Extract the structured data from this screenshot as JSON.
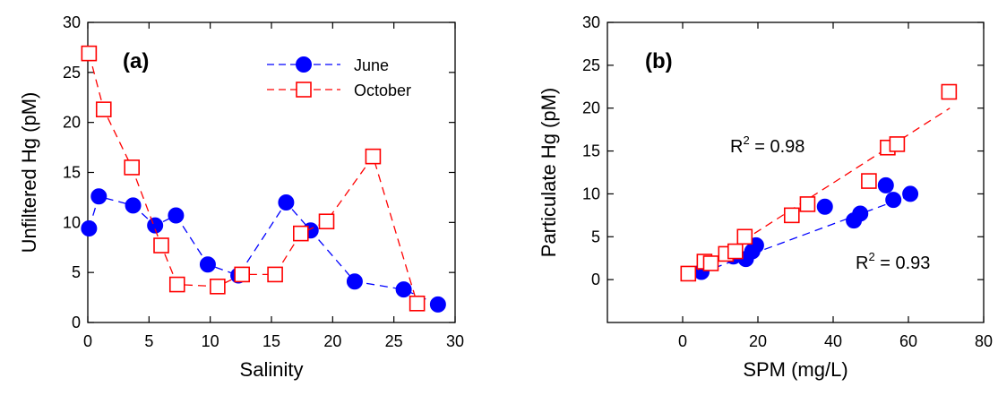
{
  "colors": {
    "june": "#0000ff",
    "october": "#ff0000",
    "axis": "#000000"
  },
  "chart_data": [
    {
      "type": "line",
      "panel_label": "(a)",
      "xlabel": "Salinity",
      "ylabel": "Unfiltered Hg (pM)",
      "xlim": [
        0,
        30
      ],
      "ylim": [
        0,
        30
      ],
      "xticks": [
        0,
        5,
        10,
        15,
        20,
        25,
        30
      ],
      "yticks": [
        0,
        5,
        10,
        15,
        20,
        25,
        30
      ],
      "grid": false,
      "legend": "top-right",
      "series": [
        {
          "name": "June",
          "marker": "filled-circle",
          "line": "dashed",
          "color": "#0000ff",
          "x": [
            0.1,
            0.9,
            3.7,
            5.5,
            7.2,
            9.8,
            12.3,
            16.2,
            18.2,
            21.8,
            25.8,
            28.6
          ],
          "y": [
            9.4,
            12.6,
            11.7,
            9.7,
            10.7,
            5.8,
            4.7,
            12.0,
            9.2,
            4.1,
            3.3,
            1.8
          ]
        },
        {
          "name": "October",
          "marker": "open-square",
          "line": "dashed",
          "color": "#ff0000",
          "x": [
            0.1,
            1.3,
            3.6,
            6.0,
            7.3,
            10.6,
            12.6,
            15.3,
            17.4,
            19.5,
            23.3,
            26.9
          ],
          "y": [
            26.9,
            21.3,
            15.5,
            7.7,
            3.8,
            3.6,
            4.8,
            4.8,
            8.9,
            10.1,
            16.6,
            1.9
          ]
        }
      ]
    },
    {
      "type": "scatter",
      "panel_label": "(b)",
      "xlabel": "SPM (mg/L)",
      "ylabel": "Particulate Hg (pM)",
      "xlim": [
        -20,
        80
      ],
      "ylim": [
        -5,
        30
      ],
      "xticks": [
        0,
        20,
        40,
        60,
        80
      ],
      "yticks": [
        0,
        5,
        10,
        15,
        20,
        25,
        30
      ],
      "grid": false,
      "series": [
        {
          "name": "June",
          "marker": "filled-circle",
          "color": "#0000ff",
          "x": [
            5,
            13.5,
            16.8,
            18.5,
            19.5,
            37.8,
            45.5,
            47.2,
            54,
            56,
            60.5
          ],
          "y": [
            0.9,
            2.7,
            2.4,
            3.3,
            4.0,
            8.5,
            6.9,
            7.7,
            11.0,
            9.3,
            10.0
          ],
          "fit": {
            "x": [
              5,
              61
            ],
            "y": [
              0.8,
              9.9
            ]
          },
          "annotation": {
            "r2_label": "R",
            "r2_sup": "2",
            "r2_value": " = 0.93",
            "x": 44,
            "y": 1.5
          }
        },
        {
          "name": "October",
          "marker": "open-square",
          "color": "#ff0000",
          "x": [
            1.5,
            5.8,
            7.5,
            11.5,
            14,
            16.5,
            29,
            33.2,
            49.5,
            54.5,
            57,
            70.8
          ],
          "y": [
            0.7,
            2.1,
            1.9,
            3.0,
            3.3,
            5.0,
            7.5,
            8.8,
            11.5,
            15.4,
            15.8,
            21.9
          ],
          "fit": {
            "x": [
              1,
              71
            ],
            "y": [
              0.3,
              20.0
            ]
          },
          "annotation": {
            "r2_label": "R",
            "r2_sup": "2",
            "r2_value": " = 0.98",
            "x": 12.5,
            "y": 15.5
          }
        }
      ]
    }
  ]
}
